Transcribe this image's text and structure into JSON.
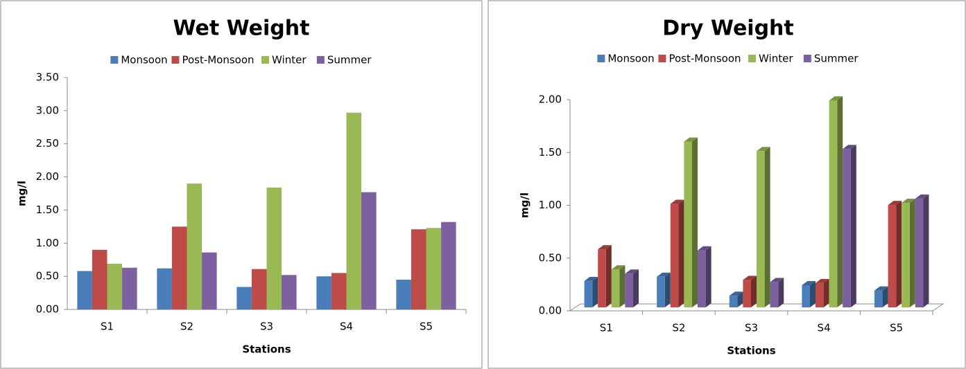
{
  "chart_data": [
    {
      "type": "bar",
      "title": "Wet Weight",
      "x_label": "Stations",
      "y_label": "mg/l",
      "categories": [
        "S1",
        "S2",
        "S3",
        "S4",
        "S5"
      ],
      "series": [
        {
          "name": "Monsoon",
          "color": "#4a7ebb",
          "values": [
            0.58,
            0.62,
            0.34,
            0.5,
            0.45
          ]
        },
        {
          "name": "Post-Monsoon",
          "color": "#be4b48",
          "values": [
            0.9,
            1.25,
            0.61,
            0.55,
            1.21
          ]
        },
        {
          "name": "Winter",
          "color": "#98b954",
          "values": [
            0.69,
            1.9,
            1.84,
            2.97,
            1.23
          ]
        },
        {
          "name": "Summer",
          "color": "#7d60a0",
          "values": [
            0.63,
            0.86,
            0.52,
            1.77,
            1.32
          ]
        }
      ],
      "ylim": [
        0,
        3.5
      ],
      "yticks": [
        {
          "value": 0,
          "label": "0.00"
        },
        {
          "value": 0.5,
          "label": "0.50"
        },
        {
          "value": 1,
          "label": "1.00"
        },
        {
          "value": 1.5,
          "label": "1.50"
        },
        {
          "value": 2,
          "label": "2.00"
        },
        {
          "value": 2.5,
          "label": "2.50"
        },
        {
          "value": 3,
          "label": "3.00"
        },
        {
          "value": 3.5,
          "label": "3.50"
        }
      ],
      "legend": "top",
      "three_d": false
    },
    {
      "type": "bar",
      "title": "Dry Weight",
      "x_label": "Stations",
      "y_label": "mg/l",
      "categories": [
        "S1",
        "S2",
        "S3",
        "S4",
        "S5"
      ],
      "series": [
        {
          "name": "Monsoon",
          "color": "#4a7ebb",
          "values": [
            0.25,
            0.29,
            0.11,
            0.21,
            0.16
          ]
        },
        {
          "name": "Post-Monsoon",
          "color": "#be4b48",
          "values": [
            0.55,
            0.98,
            0.26,
            0.23,
            0.97
          ]
        },
        {
          "name": "Winter",
          "color": "#98b954",
          "values": [
            0.36,
            1.57,
            1.48,
            1.96,
            0.99
          ]
        },
        {
          "name": "Summer",
          "color": "#7d60a0",
          "values": [
            0.32,
            0.54,
            0.24,
            1.5,
            1.03
          ]
        }
      ],
      "ylim": [
        0,
        2
      ],
      "yticks": [
        {
          "value": 0,
          "label": "0.00"
        },
        {
          "value": 0.5,
          "label": "0.50"
        },
        {
          "value": 1,
          "label": "1.00"
        },
        {
          "value": 1.5,
          "label": "1.50"
        },
        {
          "value": 2,
          "label": "2.00"
        }
      ],
      "legend": "top",
      "three_d": true
    }
  ]
}
